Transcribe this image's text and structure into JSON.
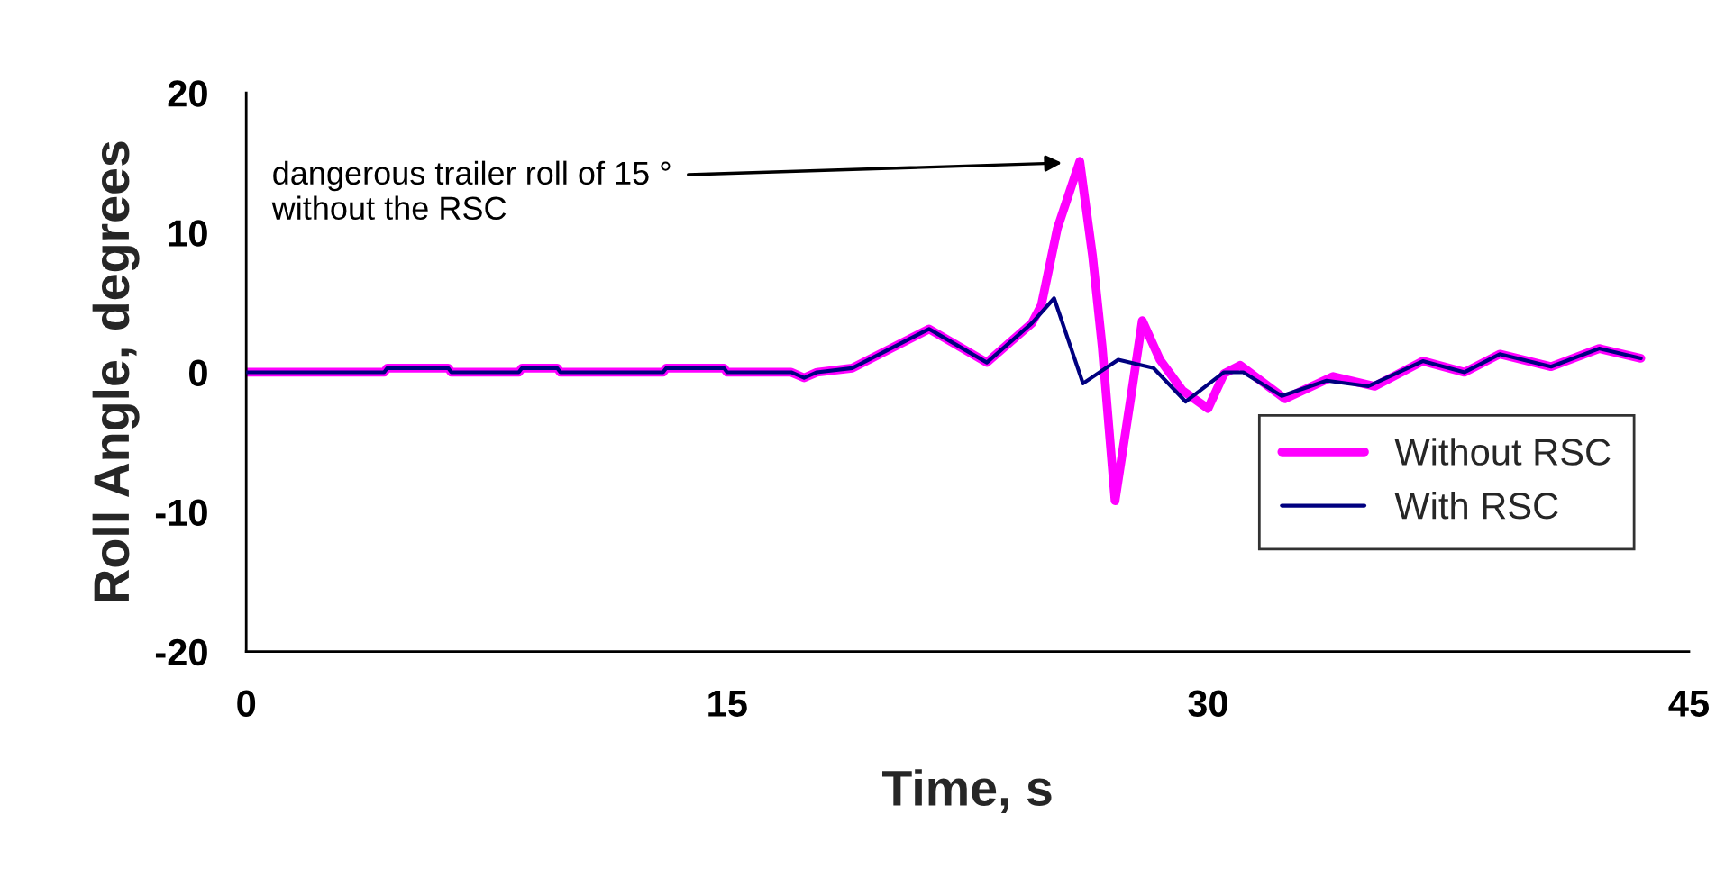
{
  "chart_data": {
    "type": "line",
    "xlabel": "Time, s",
    "ylabel": "Roll Angle, degrees",
    "xlim": [
      0,
      45
    ],
    "xticks": [
      0,
      15,
      30,
      45
    ],
    "ylim": [
      -20,
      20
    ],
    "yticks": [
      -20,
      -10,
      0,
      10,
      20
    ],
    "grid": false,
    "legend": "bottom right",
    "marker": "none",
    "line_style": "solid",
    "annotations": [
      {
        "text": "dangerous trailer roll of 15 °\nwithout the RSC",
        "x": 25.6,
        "y": 15
      }
    ],
    "series": [
      {
        "name": "Without RSC",
        "color": "#ff00ff",
        "x": [
          0,
          4.3,
          4.4,
          6.3,
          6.4,
          8.5,
          8.6,
          9.7,
          9.8,
          13,
          13.1,
          14.9,
          15,
          17.0,
          17.4,
          17.8,
          18.9,
          21.3,
          23.1,
          24.5,
          24.8,
          25.3,
          26.0,
          26.4,
          26.7,
          27.1,
          27.6,
          27.95,
          28.5,
          29.2,
          30.0,
          30.5,
          31.0,
          32.4,
          33.9,
          35.2,
          36.7,
          38.0,
          39.1,
          40.7,
          42.2,
          43.5
        ],
        "values": [
          0,
          0,
          0.3,
          0.3,
          0,
          0,
          0.3,
          0.3,
          0,
          0,
          0.3,
          0.3,
          0,
          0,
          -0.4,
          0,
          0.3,
          3.1,
          0.7,
          3.5,
          4.8,
          10.3,
          15.1,
          8.3,
          1.8,
          -9.2,
          -1.7,
          3.7,
          0.9,
          -1.3,
          -2.6,
          -0.1,
          0.5,
          -1.9,
          -0.3,
          -1.0,
          0.8,
          0,
          1.3,
          0.4,
          1.7,
          1.0
        ]
      },
      {
        "name": "With RSC",
        "color": "#000080",
        "x": [
          0,
          4.3,
          4.4,
          6.3,
          6.4,
          8.5,
          8.6,
          9.7,
          9.8,
          13,
          13.1,
          14.9,
          15,
          17.0,
          17.4,
          17.8,
          18.9,
          21.3,
          23.1,
          24.5,
          25.2,
          26.1,
          27.2,
          28.3,
          29.3,
          30.5,
          31.1,
          32.3,
          33.7,
          35.0,
          36.7,
          38.0,
          39.1,
          40.7,
          42.2,
          43.5
        ],
        "values": [
          0,
          0,
          0.3,
          0.3,
          0,
          0,
          0.3,
          0.3,
          0,
          0,
          0.3,
          0.3,
          0,
          0,
          -0.4,
          0,
          0.3,
          3.1,
          0.7,
          3.5,
          5.3,
          -0.8,
          0.9,
          0.3,
          -2.1,
          0,
          0,
          -1.7,
          -0.6,
          -1.0,
          0.8,
          0,
          1.3,
          0.4,
          1.7,
          1.0
        ]
      }
    ]
  }
}
